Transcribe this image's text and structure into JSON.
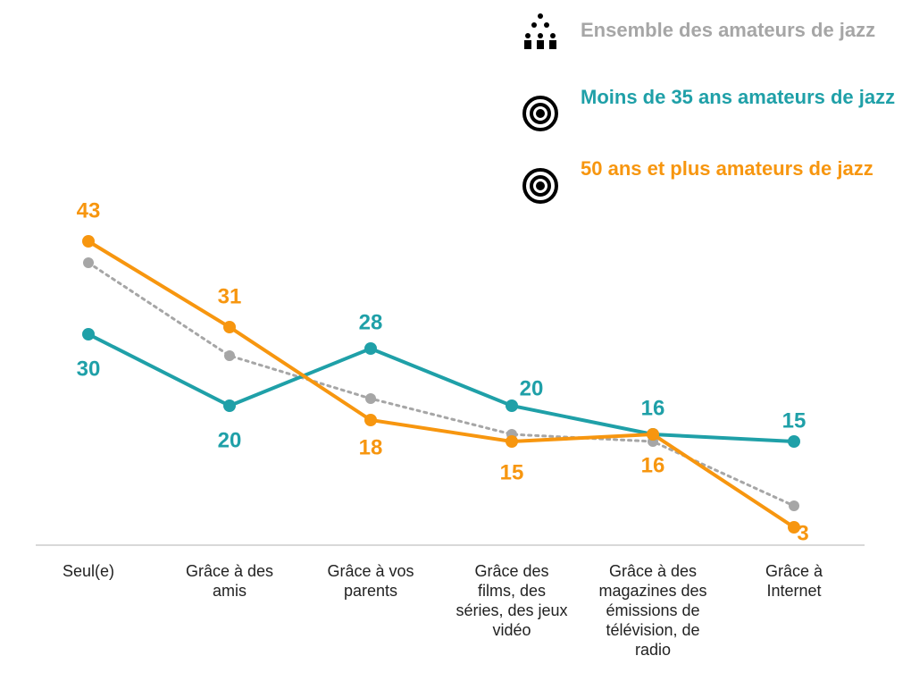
{
  "chart_data": {
    "type": "line",
    "categories": [
      "Seul(e)",
      "Grâce à des amis",
      "Grâce à vos parents",
      "Grâce des films, des séries, des jeux vidéo",
      "Grâce à des magazines des émissions de télévision, de radio",
      "Grâce à Internet"
    ],
    "series": [
      {
        "name": "Ensemble des amateurs de jazz",
        "color": "#a6a6a6",
        "values": [
          40,
          27,
          21,
          16,
          15,
          6
        ]
      },
      {
        "name": "Moins de 35 ans amateurs de jazz",
        "color": "#1fa0a8",
        "values": [
          30,
          20,
          28,
          20,
          16,
          15
        ],
        "labels": true
      },
      {
        "name": "50 ans et plus amateurs de jazz",
        "color": "#f7960f",
        "values": [
          43,
          31,
          18,
          15,
          16,
          3
        ],
        "labels": true
      }
    ],
    "ylim": [
      0,
      50
    ]
  }
}
